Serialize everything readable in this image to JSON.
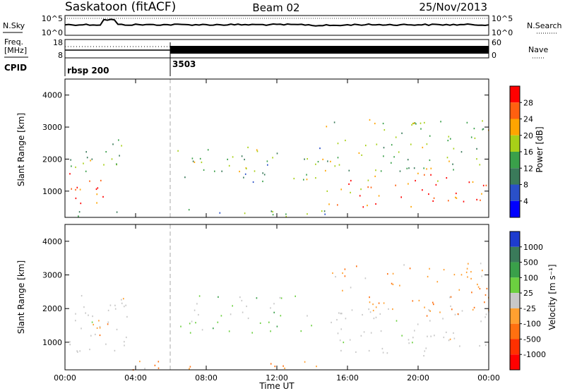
{
  "header": {
    "station": "Saskatoon (fitACF)",
    "beam": "Beam 02",
    "date": "25/Nov/2013"
  },
  "top_panels": {
    "nsky_label": "N.Sky",
    "nsearch_label": "N.Search",
    "noise_ticks_left": [
      "10^5",
      "10^0"
    ],
    "noise_ticks_right": [
      "10^5",
      "10^0"
    ],
    "freq_label_1": "Freq.",
    "freq_label_2": "[MHz]",
    "freq_ticks": [
      "18",
      "8"
    ],
    "nave_label": "Nave",
    "nave_ticks": [
      "60",
      "0"
    ],
    "cpid_label": "CPID",
    "cpid_entries": [
      {
        "text": "rbsp 200",
        "hour": 0
      },
      {
        "text": "3503",
        "hour": 6
      }
    ]
  },
  "x_axis": {
    "label": "Time UT",
    "ticks": [
      "00:00",
      "04:00",
      "08:00",
      "12:00",
      "16:00",
      "20:00",
      "00:00"
    ],
    "range_hours": [
      0,
      24
    ]
  },
  "chart_data": [
    {
      "type": "heatmap",
      "title": "",
      "xlabel": "Time UT",
      "ylabel": "Slant Range [km]",
      "y_ticks": [
        "1000",
        "2000",
        "3000",
        "4000"
      ],
      "ylim": [
        180,
        4500
      ],
      "colorbar_label": "Power [dB]",
      "colorbar_ticks": [
        "4",
        "8",
        "12",
        "16",
        "20",
        "24",
        "28"
      ],
      "colorbar_range": [
        0,
        32
      ],
      "colors": [
        "#0000ff",
        "#2a50c8",
        "#3a7a5a",
        "#3aa04a",
        "#a8d018",
        "#ffa500",
        "#ff6010",
        "#ff0000"
      ],
      "regions": [
        {
          "name": "early-loop",
          "t": [
            0,
            2.6
          ],
          "r": [
            500,
            1700
          ],
          "level": 0.9
        },
        {
          "name": "early-upper",
          "t": [
            0.2,
            3.2
          ],
          "r": [
            1500,
            2700
          ],
          "level": 0.45
        },
        {
          "name": "near-range-band",
          "t": [
            0,
            14.8
          ],
          "r": [
            200,
            450
          ],
          "level": 0.4
        },
        {
          "name": "mid-patches",
          "t": [
            6.2,
            14.5
          ],
          "r": [
            1300,
            2400
          ],
          "level": 0.45
        },
        {
          "name": "late-main",
          "t": [
            14.8,
            24
          ],
          "r": [
            500,
            1600
          ],
          "level": 0.85
        },
        {
          "name": "late-upper",
          "t": [
            14.5,
            24
          ],
          "r": [
            1600,
            3300
          ],
          "level": 0.5
        }
      ]
    },
    {
      "type": "heatmap",
      "title": "",
      "xlabel": "Time UT",
      "ylabel": "Slant Range [km]",
      "y_ticks": [
        "1000",
        "2000",
        "3000",
        "4000"
      ],
      "ylim": [
        180,
        4500
      ],
      "colorbar_label": "Velocity [m s⁻¹]",
      "colorbar_ticks": [
        "1000",
        "500",
        "100",
        "25",
        "-25",
        "-100",
        "-500",
        "-1000"
      ],
      "colorbar_range": [
        -1250,
        1250
      ],
      "colors": [
        "#1e3ccf",
        "#3a7a5a",
        "#3aa04a",
        "#6cd040",
        "#c8c8c8",
        "#ffa030",
        "#ff7010",
        "#ff3000",
        "#ff0000"
      ],
      "regions": [
        {
          "name": "early-ground-scatter",
          "t": [
            0.2,
            3.5
          ],
          "r": [
            700,
            2600
          ],
          "level": 0.0
        },
        {
          "name": "early-orange-patch",
          "t": [
            1.5,
            2.6
          ],
          "r": [
            1000,
            1800
          ],
          "level": -0.4
        },
        {
          "name": "near-range-band",
          "t": [
            2.5,
            14.8
          ],
          "r": [
            200,
            500
          ],
          "level": -0.3
        },
        {
          "name": "mid-patches",
          "t": [
            6.2,
            14.5
          ],
          "r": [
            1300,
            2400
          ],
          "level": 0.2
        },
        {
          "name": "late-ground-scatter",
          "t": [
            14.8,
            24
          ],
          "r": [
            600,
            2100
          ],
          "level": 0.0
        },
        {
          "name": "late-upper",
          "t": [
            15,
            24
          ],
          "r": [
            1800,
            3400
          ],
          "level": -0.3
        }
      ]
    }
  ]
}
